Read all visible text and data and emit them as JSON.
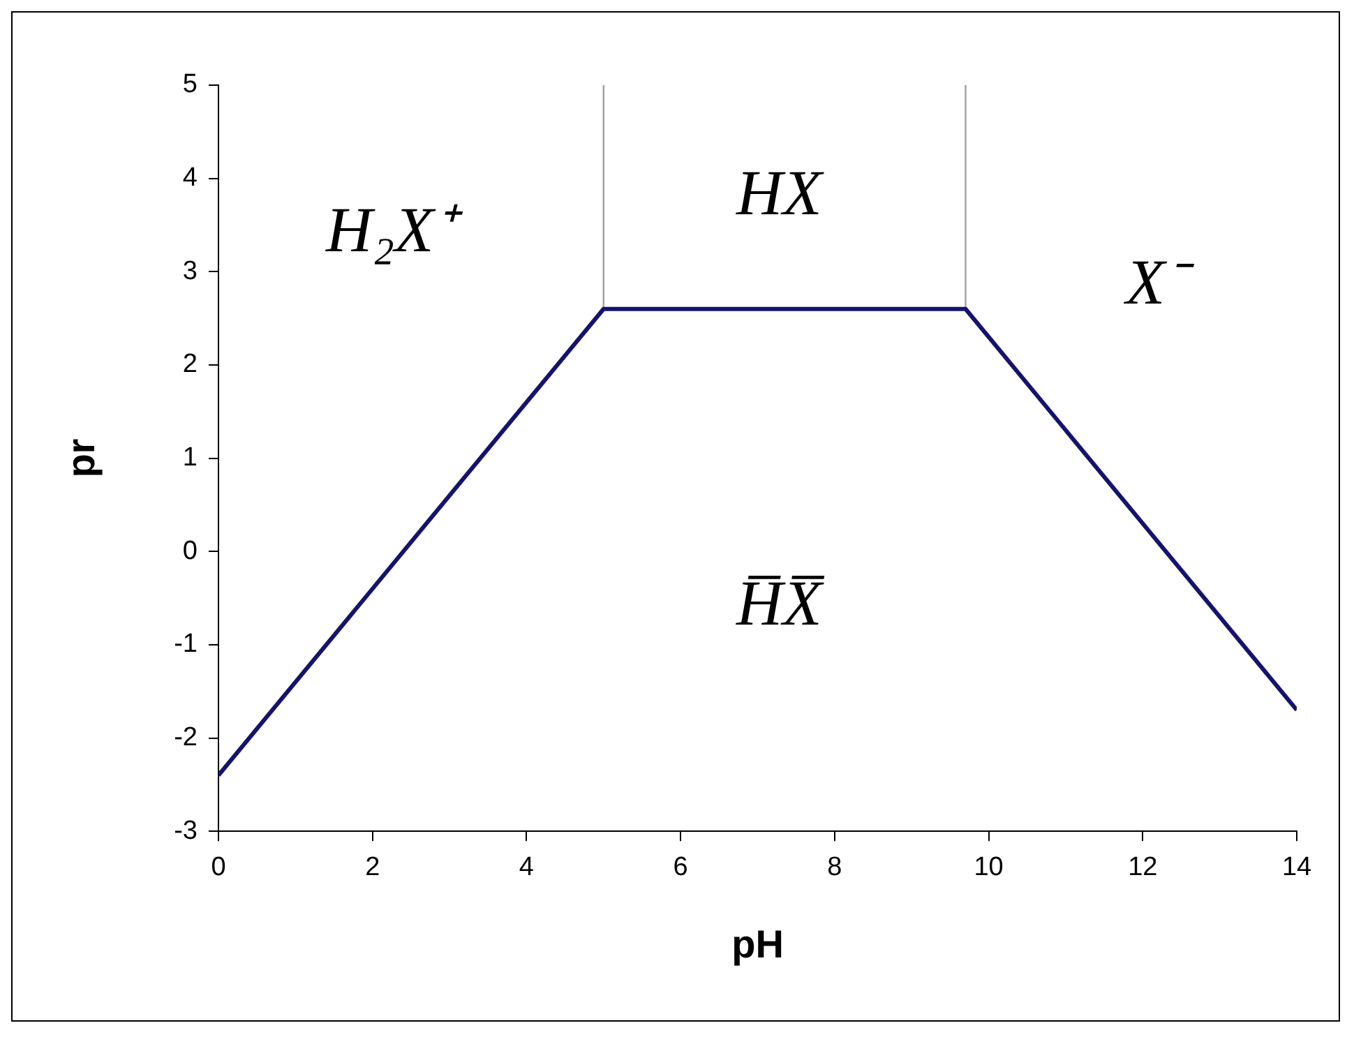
{
  "chart_data": {
    "type": "line",
    "xlabel": "pH",
    "ylabel": "pr",
    "xlim": [
      0,
      14
    ],
    "xticks": [
      0,
      2,
      4,
      6,
      8,
      10,
      12,
      14
    ],
    "ylim": [
      -3,
      5
    ],
    "yticks": [
      -3,
      -2,
      -1,
      0,
      1,
      2,
      3,
      4,
      5
    ],
    "grid": false,
    "legend": false,
    "marker": "none",
    "line_style": "solid",
    "series": [
      {
        "x": [
          0,
          5,
          9.7,
          14
        ],
        "values": [
          -2.4,
          2.6,
          2.6,
          -1.7
        ],
        "color": "#14146e"
      },
      {
        "x": [
          5,
          5
        ],
        "values": [
          2.6,
          5
        ],
        "color": "#a0a0a0"
      },
      {
        "x": [
          9.7,
          9.7
        ],
        "values": [
          2.6,
          5
        ],
        "color": "#a0a0a0"
      }
    ],
    "annotations": [
      "H₂X⁺",
      "HX",
      "X⁻",
      "H̅X̅"
    ]
  }
}
